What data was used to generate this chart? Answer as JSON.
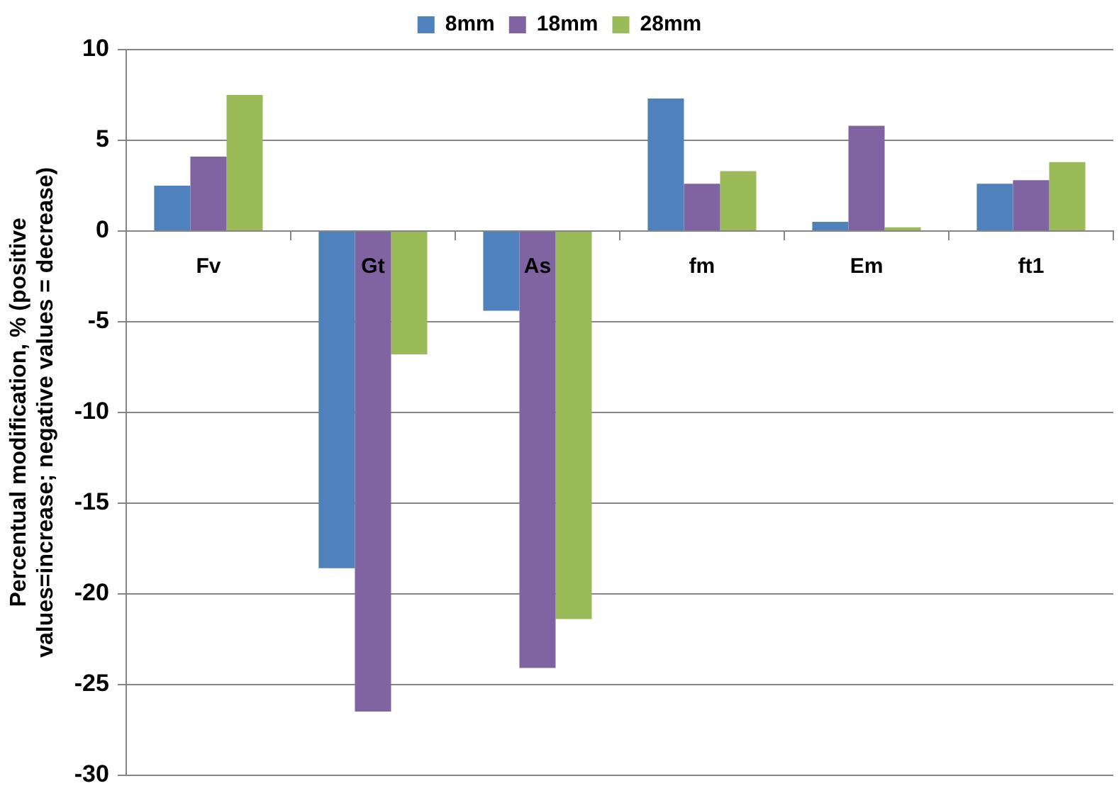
{
  "chart_data": {
    "type": "bar",
    "ylabel": "Percentual modification, % (positive values=increase; negative values = decrease)",
    "categories": [
      "Fv",
      "Gt",
      "As",
      "fm",
      "Em",
      "ft1"
    ],
    "series": [
      {
        "name": "8mm",
        "color": "#4f81bd",
        "values": [
          2.5,
          -18.6,
          -4.4,
          7.3,
          0.5,
          2.6
        ]
      },
      {
        "name": "18mm",
        "color": "#8064a2",
        "values": [
          4.1,
          -26.5,
          -24.1,
          2.6,
          5.8,
          2.8
        ]
      },
      {
        "name": "28mm",
        "color": "#9bbb59",
        "values": [
          7.5,
          -6.8,
          -21.4,
          3.3,
          0.2,
          3.8
        ]
      }
    ],
    "ylim": [
      -30,
      10
    ],
    "yticks": [
      -30,
      -25,
      -20,
      -15,
      -10,
      -5,
      0,
      5,
      10
    ],
    "grid": "y",
    "legend": "top"
  }
}
